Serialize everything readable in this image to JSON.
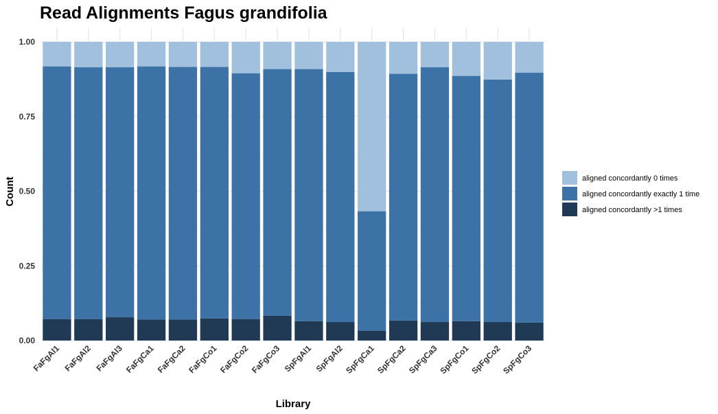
{
  "chart_data": {
    "type": "bar",
    "stacked": true,
    "title": "Read Alignments Fagus grandifolia",
    "xlabel": "Library",
    "ylabel": "Count",
    "ylim": [
      0,
      1
    ],
    "yticks": [
      "0.00",
      "0.25",
      "0.50",
      "0.75",
      "1.00"
    ],
    "ytick_values": [
      0,
      0.25,
      0.5,
      0.75,
      1.0
    ],
    "categories": [
      "FaFgAl1",
      "FaFgAl2",
      "FaFgAl3",
      "FaFgCa1",
      "FaFgCa2",
      "FaFgCo1",
      "FaFgCo2",
      "FaFgCo3",
      "SpFgAl1",
      "SpFgAl2",
      "SpFgCa1",
      "SpFgCa2",
      "SpFgCa3",
      "SpFgCo1",
      "SpFgCo2",
      "SpFgCo3"
    ],
    "series": [
      {
        "name": "aligned concordantly >1 times",
        "color": "#203a56",
        "values": [
          0.072,
          0.072,
          0.078,
          0.07,
          0.07,
          0.074,
          0.072,
          0.083,
          0.065,
          0.062,
          0.033,
          0.067,
          0.062,
          0.065,
          0.062,
          0.06
        ]
      },
      {
        "name": "aligned concordantly exactly 1 time",
        "color": "#3c72a6",
        "values": [
          0.846,
          0.843,
          0.837,
          0.848,
          0.846,
          0.842,
          0.823,
          0.826,
          0.844,
          0.837,
          0.4,
          0.826,
          0.853,
          0.821,
          0.812,
          0.837
        ]
      },
      {
        "name": "aligned concordantly 0 times",
        "color": "#a0c0dd",
        "values": [
          0.082,
          0.085,
          0.085,
          0.082,
          0.084,
          0.084,
          0.105,
          0.091,
          0.091,
          0.101,
          0.567,
          0.107,
          0.085,
          0.114,
          0.126,
          0.103
        ]
      }
    ],
    "legend": {
      "position": "right",
      "order": [
        "aligned concordantly 0 times",
        "aligned concordantly exactly 1 time",
        "aligned concordantly >1 times"
      ]
    }
  }
}
